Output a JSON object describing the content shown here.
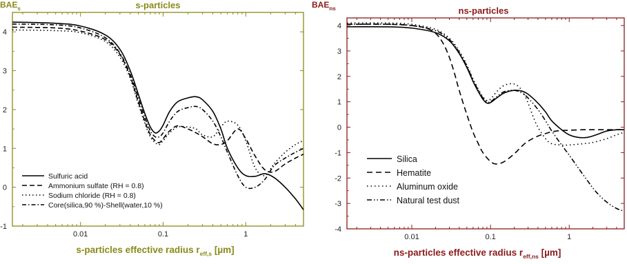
{
  "colors": {
    "left_accent": "#8a8a1a",
    "right_accent": "#8b1a1a",
    "series": "#000000"
  },
  "chart_data": [
    {
      "type": "line",
      "title": "s-particles",
      "ylabel_main": "BAE",
      "ylabel_sub": "s",
      "xlabel_main": "s-particles effective radius r",
      "xlabel_sub": "eff,s",
      "xlabel_unit": " [µm]",
      "x_scale": "log",
      "xlim": [
        0.0015,
        5
      ],
      "ylim": [
        -1,
        4.5
      ],
      "x_ticks": [
        {
          "v": 0.01,
          "label": "0.01"
        },
        {
          "v": 0.1,
          "label": "0.1"
        },
        {
          "v": 1,
          "label": "1"
        }
      ],
      "y_ticks": [
        {
          "v": -1,
          "label": "-1"
        },
        {
          "v": 0,
          "label": "0"
        },
        {
          "v": 1,
          "label": "1"
        },
        {
          "v": 2,
          "label": "2"
        },
        {
          "v": 3,
          "label": "3"
        },
        {
          "v": 4,
          "label": "4"
        }
      ],
      "legend_position": "bottom-left",
      "series": [
        {
          "name": "Sulfuric acid",
          "style": "solid",
          "x": [
            0.0015,
            0.005,
            0.01,
            0.02,
            0.03,
            0.04,
            0.05,
            0.06,
            0.07,
            0.08,
            0.09,
            0.1,
            0.12,
            0.15,
            0.2,
            0.25,
            0.3,
            0.4,
            0.5,
            0.6,
            0.8,
            1.0,
            1.3,
            1.7,
            2.2,
            3.0,
            4.0,
            5.0
          ],
          "y": [
            4.25,
            4.22,
            4.15,
            3.92,
            3.55,
            3.0,
            2.4,
            1.9,
            1.55,
            1.4,
            1.45,
            1.6,
            1.95,
            2.2,
            2.3,
            2.33,
            2.25,
            1.95,
            1.5,
            1.0,
            0.5,
            0.3,
            0.28,
            0.35,
            0.25,
            0.0,
            -0.3,
            -0.58
          ]
        },
        {
          "name": "Ammonium sulfate (RH = 0.8)",
          "style": "dashed",
          "x": [
            0.0015,
            0.005,
            0.01,
            0.02,
            0.03,
            0.04,
            0.05,
            0.06,
            0.07,
            0.08,
            0.09,
            0.1,
            0.12,
            0.15,
            0.2,
            0.25,
            0.3,
            0.4,
            0.5,
            0.6,
            0.8,
            1.0,
            1.3,
            1.7,
            2.2,
            3.0,
            4.0,
            5.0
          ],
          "y": [
            4.12,
            4.1,
            4.02,
            3.8,
            3.42,
            2.85,
            2.2,
            1.7,
            1.35,
            1.2,
            1.15,
            1.25,
            1.45,
            1.58,
            1.5,
            1.4,
            1.3,
            1.12,
            1.1,
            1.2,
            1.5,
            1.25,
            0.8,
            0.45,
            0.4,
            0.6,
            0.75,
            0.85
          ]
        },
        {
          "name": "Sodium chloride (RH = 0.8)",
          "style": "dotted",
          "x": [
            0.0015,
            0.005,
            0.01,
            0.02,
            0.03,
            0.04,
            0.05,
            0.06,
            0.07,
            0.08,
            0.09,
            0.1,
            0.12,
            0.15,
            0.2,
            0.25,
            0.3,
            0.4,
            0.5,
            0.6,
            0.8,
            1.0,
            1.3,
            1.7,
            2.2,
            3.0,
            4.0,
            5.0
          ],
          "y": [
            4.05,
            4.03,
            3.98,
            3.75,
            3.35,
            2.8,
            2.15,
            1.65,
            1.3,
            1.15,
            1.1,
            1.2,
            1.4,
            1.55,
            1.55,
            1.5,
            1.35,
            1.3,
            1.55,
            1.7,
            1.6,
            1.2,
            0.5,
            0.3,
            0.6,
            0.9,
            1.1,
            1.2
          ]
        },
        {
          "name": "Core(silica,90 %)-Shell(water,10 %)",
          "style": "dashdot",
          "x": [
            0.0015,
            0.005,
            0.01,
            0.02,
            0.03,
            0.04,
            0.05,
            0.06,
            0.07,
            0.08,
            0.09,
            0.1,
            0.12,
            0.15,
            0.2,
            0.25,
            0.3,
            0.4,
            0.5,
            0.6,
            0.8,
            1.0,
            1.3,
            1.7,
            2.2,
            3.0,
            4.0,
            5.0
          ],
          "y": [
            4.2,
            4.18,
            4.1,
            3.85,
            3.45,
            2.9,
            2.3,
            1.8,
            1.45,
            1.3,
            1.3,
            1.4,
            1.7,
            1.95,
            2.05,
            2.08,
            2.0,
            1.7,
            1.3,
            0.9,
            0.3,
            0.0,
            0.0,
            0.2,
            0.55,
            0.75,
            0.9,
            1.0
          ]
        }
      ]
    },
    {
      "type": "line",
      "title": "ns-particles",
      "ylabel_main": "BAE",
      "ylabel_sub": "ns",
      "xlabel_main": "ns-particles effective radius r",
      "xlabel_sub": "eff,ns",
      "xlabel_unit": " [µm]",
      "x_scale": "log",
      "xlim": [
        0.0015,
        5
      ],
      "ylim": [
        -4,
        4.3
      ],
      "x_ticks": [
        {
          "v": 0.01,
          "label": "0.01"
        },
        {
          "v": 0.1,
          "label": "0.1"
        },
        {
          "v": 1,
          "label": "1"
        }
      ],
      "y_ticks": [
        {
          "v": -4,
          "label": "-4"
        },
        {
          "v": -3,
          "label": "-3"
        },
        {
          "v": -2,
          "label": "-2"
        },
        {
          "v": -1,
          "label": "-1"
        },
        {
          "v": 0,
          "label": "0"
        },
        {
          "v": 1,
          "label": "1"
        },
        {
          "v": 2,
          "label": "2"
        },
        {
          "v": 3,
          "label": "3"
        },
        {
          "v": 4,
          "label": "4"
        }
      ],
      "legend_position": "bottom-left",
      "series": [
        {
          "name": "Silica",
          "style": "solid",
          "x": [
            0.0015,
            0.005,
            0.01,
            0.02,
            0.03,
            0.04,
            0.05,
            0.06,
            0.07,
            0.08,
            0.09,
            0.1,
            0.12,
            0.15,
            0.2,
            0.25,
            0.3,
            0.4,
            0.5,
            0.6,
            0.8,
            1.0,
            1.3,
            1.7,
            2.2,
            3.0,
            4.0,
            5.0
          ],
          "y": [
            3.95,
            3.95,
            3.9,
            3.72,
            3.4,
            2.9,
            2.35,
            1.8,
            1.4,
            1.1,
            0.95,
            0.97,
            1.15,
            1.35,
            1.45,
            1.42,
            1.3,
            0.95,
            0.6,
            0.25,
            -0.1,
            -0.3,
            -0.4,
            -0.4,
            -0.3,
            -0.15,
            -0.1,
            -0.1
          ]
        },
        {
          "name": "Hematite",
          "style": "dashed",
          "x": [
            0.0015,
            0.005,
            0.01,
            0.015,
            0.02,
            0.025,
            0.03,
            0.035,
            0.04,
            0.05,
            0.06,
            0.07,
            0.08,
            0.1,
            0.12,
            0.15,
            0.2,
            0.25,
            0.3,
            0.4,
            0.5,
            0.6,
            0.8,
            1.0,
            1.5,
            2.0,
            3.0,
            4.0,
            5.0
          ],
          "y": [
            4.05,
            4.05,
            4.0,
            3.9,
            3.7,
            3.3,
            2.75,
            2.1,
            1.45,
            0.5,
            -0.2,
            -0.65,
            -1.0,
            -1.35,
            -1.45,
            -1.35,
            -1.05,
            -0.75,
            -0.55,
            -0.35,
            -0.25,
            -0.18,
            -0.13,
            -0.12,
            -0.1,
            -0.1,
            -0.1,
            -0.1,
            -0.1
          ]
        },
        {
          "name": "Aluminum oxide",
          "style": "dotted",
          "x": [
            0.0015,
            0.005,
            0.01,
            0.02,
            0.03,
            0.04,
            0.05,
            0.06,
            0.07,
            0.08,
            0.09,
            0.1,
            0.12,
            0.15,
            0.2,
            0.25,
            0.3,
            0.35,
            0.4,
            0.5,
            0.6,
            0.8,
            1.0,
            1.5,
            2.0,
            3.0,
            4.0,
            5.0
          ],
          "y": [
            4.1,
            4.1,
            4.05,
            3.85,
            3.5,
            3.0,
            2.45,
            1.9,
            1.5,
            1.2,
            1.05,
            1.1,
            1.4,
            1.65,
            1.7,
            1.45,
            0.95,
            0.4,
            0.0,
            -0.45,
            -0.65,
            -0.7,
            -0.7,
            -0.65,
            -0.6,
            -0.45,
            -0.3,
            -0.2
          ]
        },
        {
          "name": "Natural test dust",
          "style": "dashdot",
          "x": [
            0.0015,
            0.005,
            0.01,
            0.02,
            0.03,
            0.04,
            0.05,
            0.06,
            0.07,
            0.08,
            0.09,
            0.1,
            0.12,
            0.15,
            0.2,
            0.25,
            0.3,
            0.4,
            0.5,
            0.6,
            0.8,
            1.0,
            1.3,
            1.7,
            2.2,
            3.0,
            4.0,
            5.0
          ],
          "y": [
            4.05,
            4.05,
            4.0,
            3.8,
            3.45,
            2.95,
            2.4,
            1.85,
            1.45,
            1.15,
            1.0,
            1.0,
            1.2,
            1.4,
            1.45,
            1.35,
            1.15,
            0.7,
            0.25,
            -0.15,
            -0.7,
            -1.1,
            -1.6,
            -2.1,
            -2.55,
            -2.95,
            -3.2,
            -3.3
          ]
        }
      ]
    }
  ]
}
